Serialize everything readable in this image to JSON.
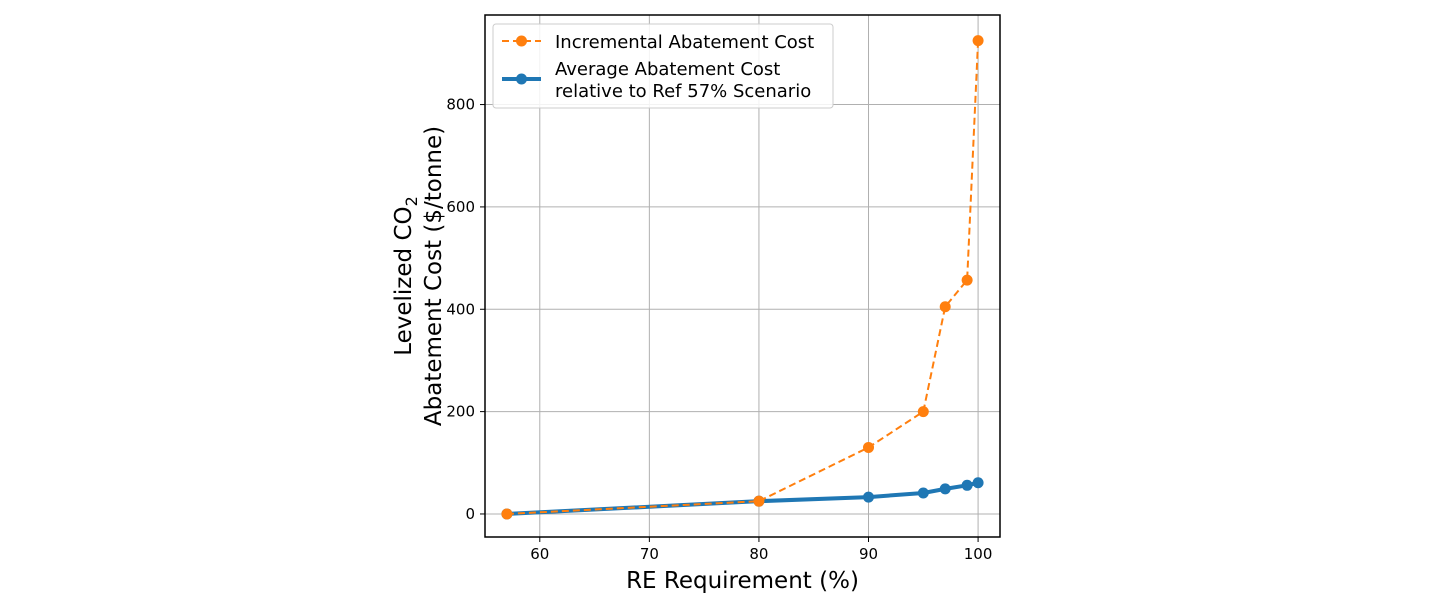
{
  "chart_data": {
    "type": "line",
    "xlabel": "RE Requirement (%)",
    "ylabel_line1_prefix": "Levelized CO",
    "ylabel_line1_sub": "2",
    "ylabel_line2": "Abatement Cost ($/tonne)",
    "xlim": [
      55,
      102
    ],
    "ylim": [
      -45,
      975
    ],
    "xticks": [
      60,
      70,
      80,
      90,
      100
    ],
    "yticks": [
      0,
      200,
      400,
      600,
      800
    ],
    "grid": true,
    "legend_position": "upper-left",
    "series": [
      {
        "name": "Incremental Abatement Cost",
        "color": "#ff7f0e",
        "style": "dashed",
        "x": [
          57,
          80,
          90,
          95,
          97,
          99,
          100
        ],
        "y": [
          0,
          25,
          130,
          200,
          405,
          457,
          925
        ]
      },
      {
        "name": "Average Abatement Cost relative to Ref 57% Scenario",
        "legend_line1": "Average Abatement Cost",
        "legend_line2": "relative to Ref 57% Scenario",
        "color": "#1f77b4",
        "style": "solid",
        "x": [
          57,
          80,
          90,
          95,
          97,
          99,
          100
        ],
        "y": [
          0,
          25,
          33,
          41,
          49,
          56,
          61
        ]
      }
    ]
  }
}
